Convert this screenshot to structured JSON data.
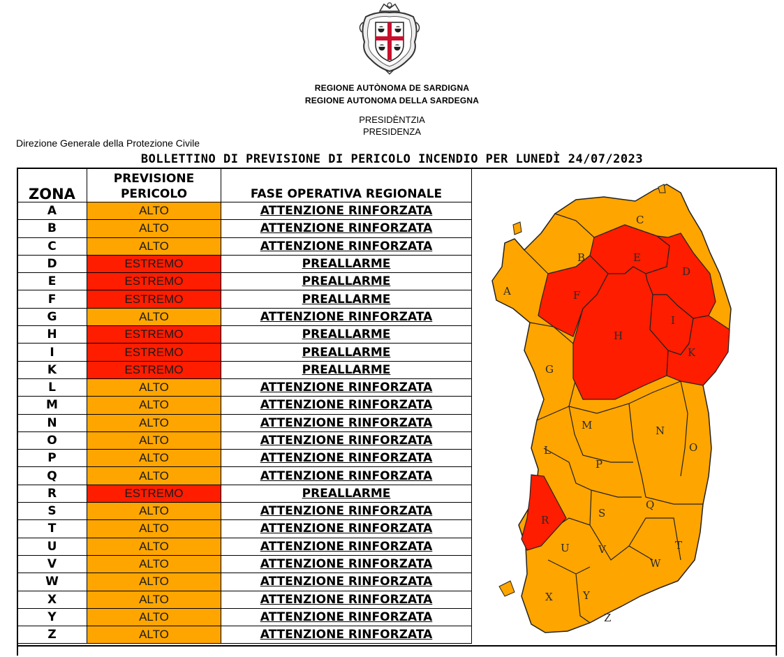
{
  "header": {
    "region_sardinian": "REGIONE AUTÒNOMA DE SARDIGNA",
    "region_italian": "REGIONE AUTONOMA DELLA SARDEGNA",
    "presidency_sardinian": "PRESIDÈNTZIA",
    "presidency_italian": "PRESIDENZA",
    "directorate": "Direzione Generale della Protezione Civile",
    "title": "BOLLETTINO DI PREVISIONE DI PERICOLO INCENDIO PER LUNEDÌ 24/07/2023"
  },
  "table": {
    "headers": {
      "zona": "ZONA",
      "previsione_line1": "PREVISIONE",
      "previsione_line2": "PERICOLO",
      "fase": "FASE OPERATIVA REGIONALE"
    },
    "rows": [
      {
        "zona": "A",
        "previsione": "ALTO",
        "fase": "ATTENZIONE RINFORZATA"
      },
      {
        "zona": "B",
        "previsione": "ALTO",
        "fase": "ATTENZIONE RINFORZATA"
      },
      {
        "zona": "C",
        "previsione": "ALTO",
        "fase": "ATTENZIONE RINFORZATA"
      },
      {
        "zona": "D",
        "previsione": "ESTREMO",
        "fase": "PREALLARME"
      },
      {
        "zona": "E",
        "previsione": "ESTREMO",
        "fase": "PREALLARME"
      },
      {
        "zona": "F",
        "previsione": "ESTREMO",
        "fase": "PREALLARME"
      },
      {
        "zona": "G",
        "previsione": "ALTO",
        "fase": "ATTENZIONE RINFORZATA"
      },
      {
        "zona": "H",
        "previsione": "ESTREMO",
        "fase": "PREALLARME"
      },
      {
        "zona": "I",
        "previsione": "ESTREMO",
        "fase": "PREALLARME"
      },
      {
        "zona": "K",
        "previsione": "ESTREMO",
        "fase": "PREALLARME"
      },
      {
        "zona": "L",
        "previsione": "ALTO",
        "fase": "ATTENZIONE RINFORZATA"
      },
      {
        "zona": "M",
        "previsione": "ALTO",
        "fase": "ATTENZIONE RINFORZATA"
      },
      {
        "zona": "N",
        "previsione": "ALTO",
        "fase": "ATTENZIONE RINFORZATA"
      },
      {
        "zona": "O",
        "previsione": "ALTO",
        "fase": "ATTENZIONE RINFORZATA"
      },
      {
        "zona": "P",
        "previsione": "ALTO",
        "fase": "ATTENZIONE RINFORZATA"
      },
      {
        "zona": "Q",
        "previsione": "ALTO",
        "fase": "ATTENZIONE RINFORZATA"
      },
      {
        "zona": "R",
        "previsione": "ESTREMO",
        "fase": "PREALLARME"
      },
      {
        "zona": "S",
        "previsione": "ALTO",
        "fase": "ATTENZIONE RINFORZATA"
      },
      {
        "zona": "T",
        "previsione": "ALTO",
        "fase": "ATTENZIONE RINFORZATA"
      },
      {
        "zona": "U",
        "previsione": "ALTO",
        "fase": "ATTENZIONE RINFORZATA"
      },
      {
        "zona": "V",
        "previsione": "ALTO",
        "fase": "ATTENZIONE RINFORZATA"
      },
      {
        "zona": "W",
        "previsione": "ALTO",
        "fase": "ATTENZIONE RINFORZATA"
      },
      {
        "zona": "X",
        "previsione": "ALTO",
        "fase": "ATTENZIONE RINFORZATA"
      },
      {
        "zona": "Y",
        "previsione": "ALTO",
        "fase": "ATTENZIONE RINFORZATA"
      },
      {
        "zona": "Z",
        "previsione": "ALTO",
        "fase": "ATTENZIONE RINFORZATA"
      }
    ]
  },
  "colors": {
    "alto": "#ffa500",
    "estremo": "#ff1d00"
  },
  "map": {
    "labels": [
      "A",
      "B",
      "C",
      "D",
      "E",
      "F",
      "G",
      "H",
      "I",
      "K",
      "L",
      "M",
      "N",
      "O",
      "P",
      "Q",
      "R",
      "S",
      "T",
      "U",
      "V",
      "W",
      "X",
      "Y",
      "Z"
    ]
  }
}
